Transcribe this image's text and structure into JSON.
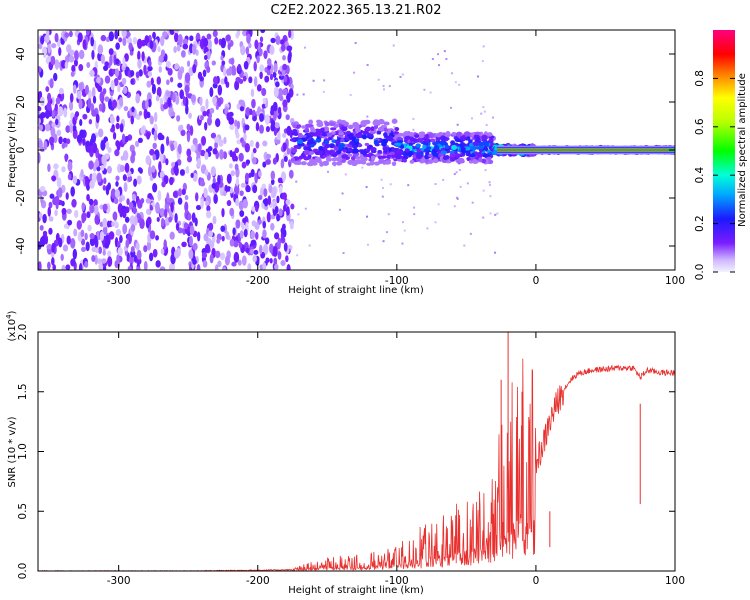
{
  "title": "C2E2.2022.365.13.21.R02",
  "colors": {
    "snr_line": "#e8312f",
    "axis": "#000000",
    "background": "#ffffff"
  },
  "chart_data": [
    {
      "type": "heatmap",
      "xlabel": "Height of straight line (km)",
      "ylabel": "Frequency (Hz)",
      "xlim": [
        -358,
        100
      ],
      "ylim": [
        -50,
        50
      ],
      "xticks": [
        -300,
        -200,
        -100,
        0,
        100
      ],
      "yticks": [
        -40,
        -20,
        0,
        20,
        40
      ],
      "grid": false,
      "colorbar": {
        "label": "Normalized spectral amplitude",
        "range": [
          0.0,
          1.0
        ],
        "ticks": [
          0.0,
          0.2,
          0.4,
          0.6,
          0.8
        ],
        "colormap": "rainbow (violet-blue-cyan-green-yellow-red-magenta)"
      },
      "regions": [
        {
          "x_range": [
            -358,
            -175
          ],
          "description_level": "noise",
          "amplitude": 0.1,
          "freq_spread": 50
        },
        {
          "x_range": [
            -175,
            -100
          ],
          "amplitude": 0.3,
          "freq_center": 3,
          "freq_spread": 9
        },
        {
          "x_range": [
            -100,
            -30
          ],
          "amplitude": 0.4,
          "freq_center": 1,
          "freq_spread": 6
        },
        {
          "x_range": [
            -30,
            0
          ],
          "amplitude": 0.8,
          "freq_center": 0,
          "freq_spread": 2
        },
        {
          "x_range": [
            0,
            100
          ],
          "amplitude": 1.0,
          "freq_center": 0,
          "freq_spread": 1
        }
      ]
    },
    {
      "type": "line",
      "xlabel": "Height of straight line (km)",
      "ylabel": "SNR (10 * v/v)",
      "y_multiplier": "(x10",
      "y_multiplier_exp": "4",
      "y_multiplier_close": ")",
      "xlim": [
        -358,
        100
      ],
      "ylim": [
        0.0,
        2.0
      ],
      "xticks": [
        -300,
        -200,
        -100,
        0,
        100
      ],
      "yticks": [
        0.0,
        0.5,
        1.0,
        1.5,
        2.0
      ],
      "grid": false,
      "series": [
        {
          "x": [
            -358,
            -250,
            -175,
            -160,
            -150,
            -140,
            -120,
            -100,
            -80,
            -60,
            -40,
            -30,
            -20,
            -15,
            -10,
            -5,
            0,
            5,
            10,
            15,
            20,
            25,
            30,
            40,
            50,
            60,
            70,
            75,
            80,
            90,
            100
          ],
          "y": [
            0.0,
            0.0,
            0.01,
            0.05,
            0.06,
            0.07,
            0.08,
            0.12,
            0.22,
            0.3,
            0.4,
            0.55,
            0.8,
            0.9,
            1.0,
            0.95,
            0.9,
            1.05,
            1.25,
            1.4,
            1.52,
            1.6,
            1.65,
            1.68,
            1.69,
            1.7,
            1.7,
            1.62,
            1.68,
            1.66,
            1.66
          ]
        }
      ],
      "spikes": [
        {
          "x": -20,
          "y": 2.0
        },
        {
          "x": -25,
          "y": 1.6
        },
        {
          "x": -10,
          "y": 1.5
        },
        {
          "x": 10,
          "y": 0.5
        },
        {
          "x": 75,
          "y": 1.4
        }
      ]
    }
  ]
}
